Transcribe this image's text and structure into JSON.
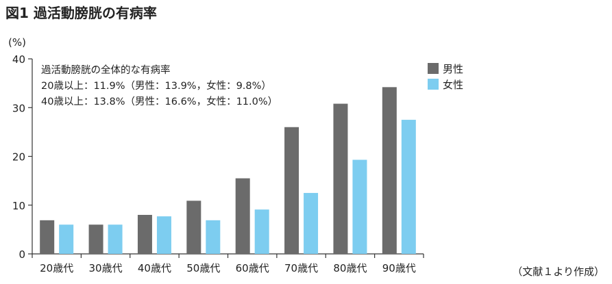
{
  "figure_title": "図1 過活動膀胱の有病率",
  "source_note": "（文献１より作成）",
  "chart_data": {
    "type": "bar",
    "title": "図1 過活動膀胱の有病率",
    "ylabel": "(%)",
    "xlabel": "",
    "ylim": [
      0,
      40
    ],
    "yticks": [
      0,
      10,
      20,
      30,
      40
    ],
    "categories": [
      "20歳代",
      "30歳代",
      "40歳代",
      "50歳代",
      "60歳代",
      "70歳代",
      "80歳代",
      "90歳代"
    ],
    "series": [
      {
        "name": "男性",
        "color": "#6b6b6b",
        "values": [
          6.9,
          6.0,
          8.0,
          10.9,
          15.5,
          26.0,
          30.8,
          34.2
        ]
      },
      {
        "name": "女性",
        "color": "#7dcdf0",
        "values": [
          6.0,
          6.0,
          7.7,
          6.9,
          9.1,
          12.5,
          19.3,
          27.5
        ]
      }
    ],
    "legend_position": "top-right",
    "grid": false,
    "annotations": [
      "過活動膀胱の全体的な有病率",
      "20歳以上：11.9%（男性：13.9%，女性：9.8%）",
      "40歳以上：13.8%（男性：16.6%，女性：11.0%）"
    ]
  }
}
